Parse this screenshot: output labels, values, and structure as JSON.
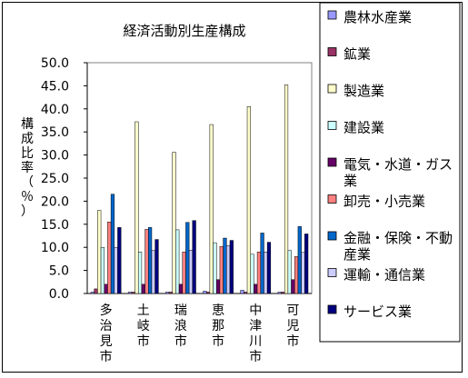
{
  "chart_data": {
    "type": "bar",
    "title": "経済活動別生産構成",
    "ylabel": "構成比率（％）",
    "ylim": [
      0,
      50
    ],
    "yticks": [
      "0.0",
      "5.0",
      "10.0",
      "15.0",
      "20.0",
      "25.0",
      "30.0",
      "35.0",
      "40.0",
      "45.0",
      "50.0"
    ],
    "categories": [
      "多治見市",
      "土岐市",
      "瑞浪市",
      "恵那市",
      "中津川市",
      "可児市"
    ],
    "series": [
      {
        "name": "農林水産業",
        "color": "#9999ff",
        "values": [
          0.3,
          0.3,
          0.3,
          0.5,
          0.7,
          0.3
        ]
      },
      {
        "name": "鉱業",
        "color": "#993366",
        "values": [
          1.0,
          0.3,
          0.3,
          0.3,
          0.3,
          0.3
        ]
      },
      {
        "name": "製造業",
        "color": "#ffffcc",
        "values": [
          18.0,
          37.2,
          30.6,
          36.6,
          40.5,
          45.2
        ]
      },
      {
        "name": "建設業",
        "color": "#ccffff",
        "values": [
          10.0,
          9.0,
          13.8,
          11.0,
          8.5,
          9.3
        ]
      },
      {
        "name": "電気・水道・ガス業",
        "color": "#660066",
        "values": [
          2.0,
          2.0,
          2.0,
          3.0,
          2.0,
          3.0
        ]
      },
      {
        "name": "卸売・小売業",
        "color": "#ff8080",
        "values": [
          15.5,
          13.9,
          9.0,
          10.2,
          9.0,
          8.0
        ]
      },
      {
        "name": "金融・保険・不動産業",
        "color": "#0066cc",
        "values": [
          21.5,
          14.3,
          15.4,
          12.0,
          13.1,
          14.5
        ]
      },
      {
        "name": "運輸・通信業",
        "color": "#ccccff",
        "values": [
          10.0,
          9.3,
          9.4,
          10.4,
          9.0,
          8.9
        ]
      },
      {
        "name": "サービス業",
        "color": "#000080",
        "values": [
          14.3,
          11.7,
          15.8,
          11.5,
          11.1,
          12.9
        ]
      }
    ],
    "legend_position": "right",
    "grid": false
  }
}
